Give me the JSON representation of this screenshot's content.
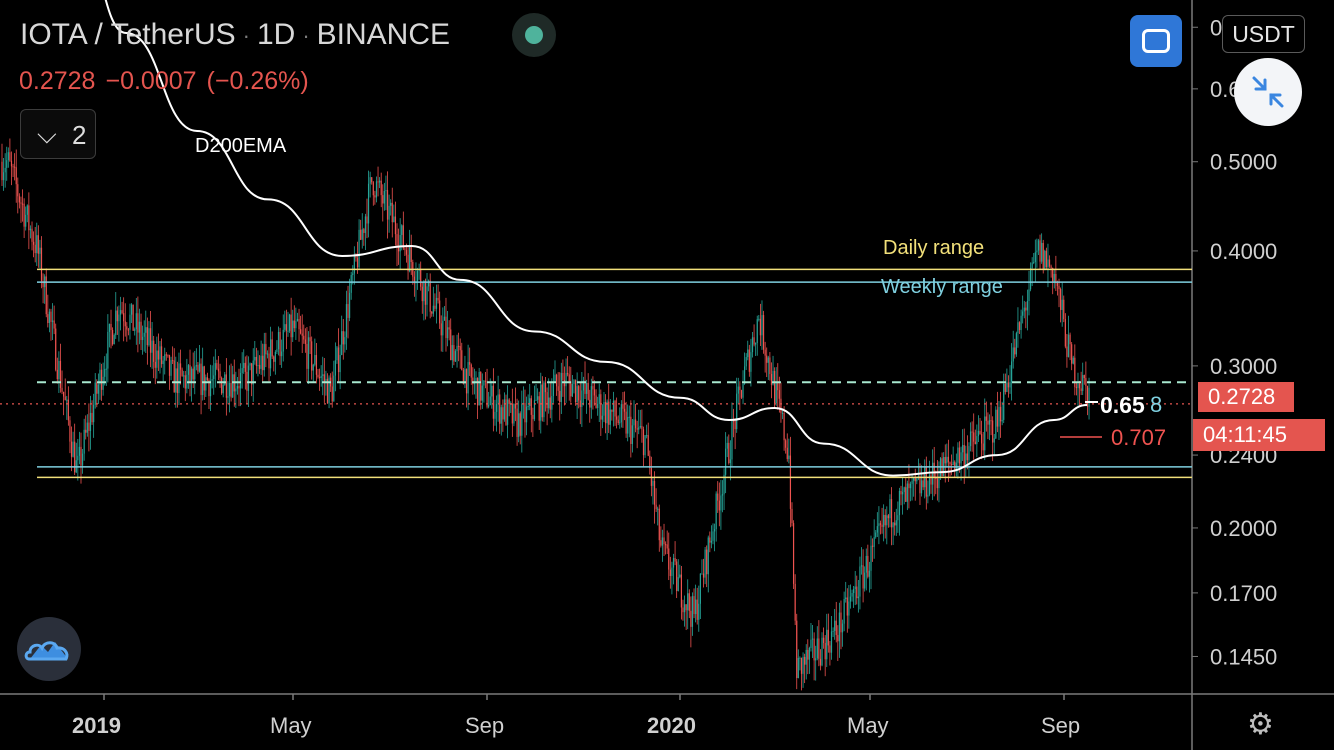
{
  "header": {
    "symbol": "IOTA / TetherUS",
    "interval": "1D",
    "exchange": "BINANCE",
    "last_price": "0.2728",
    "change": "−0.0007",
    "change_pct": "(−0.26%)"
  },
  "legend_toggle": {
    "icon": "chevron-down-icon",
    "count": "2"
  },
  "currency_button": "USDT",
  "fullscreen_icon": "fullscreen-icon",
  "shrink_icon": "collapse-arrows-icon",
  "logo_icon": "tradingview-cloud-icon",
  "settings_icon": "gear-icon",
  "colors": {
    "up": "#26a69a",
    "down": "#ef5350",
    "daily_range": "#f2e07a",
    "weekly_range": "#7fd0e0",
    "ema": "#ffffff",
    "price_tag": "#e4554f",
    "accent": "#2f77d7"
  },
  "annotations": {
    "ema_label": "D200EMA",
    "daily_range_label": "Daily range",
    "weekly_range_label": "Weekly range",
    "fib_label": "0.65",
    "fib_label_2": "8",
    "ratio_label": "0.707"
  },
  "price_tags": {
    "last_price": "0.2728",
    "countdown": "04:11:45"
  },
  "chart_data": {
    "type": "candlestick",
    "scale": "log",
    "ylim": [
      0.132,
      0.72
    ],
    "y_ticks": [
      "0.7000",
      "0.6000",
      "0.5000",
      "0.4000",
      "0.3000",
      "0.2400",
      "0.2000",
      "0.1700",
      "0.1450"
    ],
    "x_ticks": [
      "2019",
      "May",
      "Sep",
      "2020",
      "May",
      "Sep"
    ],
    "hlines": [
      {
        "name": "Daily range",
        "values": [
          0.382,
          0.227
        ]
      },
      {
        "name": "Weekly range",
        "values": [
          0.37,
          0.233
        ]
      },
      {
        "name": "dashed",
        "value": 0.288
      }
    ],
    "ema_path": [
      [
        "2018-12-15",
        0.88
      ],
      [
        "2019-01-15",
        0.69
      ],
      [
        "2019-03-01",
        0.54
      ],
      [
        "2019-04-15",
        0.455
      ],
      [
        "2019-06-01",
        0.395
      ],
      [
        "2019-07-15",
        0.405
      ],
      [
        "2019-08-15",
        0.372
      ],
      [
        "2019-10-01",
        0.327
      ],
      [
        "2019-11-15",
        0.303
      ],
      [
        "2020-01-01",
        0.277
      ],
      [
        "2020-02-01",
        0.262
      ],
      [
        "2020-03-01",
        0.27
      ],
      [
        "2020-04-01",
        0.247
      ],
      [
        "2020-05-15",
        0.228
      ],
      [
        "2020-06-15",
        0.23
      ],
      [
        "2020-07-20",
        0.24
      ],
      [
        "2020-08-25",
        0.262
      ],
      [
        "2020-09-15",
        0.272
      ]
    ],
    "price_path": [
      [
        "2018-11-01",
        0.5
      ],
      [
        "2018-11-20",
        0.4
      ],
      [
        "2018-12-15",
        0.23
      ],
      [
        "2019-01-10",
        0.35
      ],
      [
        "2019-02-15",
        0.29
      ],
      [
        "2019-04-01",
        0.29
      ],
      [
        "2019-05-01",
        0.33
      ],
      [
        "2019-05-25",
        0.28
      ],
      [
        "2019-06-20",
        0.48
      ],
      [
        "2019-07-15",
        0.39
      ],
      [
        "2019-08-20",
        0.29
      ],
      [
        "2019-09-20",
        0.26
      ],
      [
        "2019-10-20",
        0.29
      ],
      [
        "2019-12-10",
        0.25
      ],
      [
        "2019-12-20",
        0.19
      ],
      [
        "2020-01-10",
        0.16
      ],
      [
        "2020-02-10",
        0.29
      ],
      [
        "2020-02-20",
        0.34
      ],
      [
        "2020-03-10",
        0.24
      ],
      [
        "2020-03-15",
        0.14
      ],
      [
        "2020-04-10",
        0.155
      ],
      [
        "2020-05-15",
        0.21
      ],
      [
        "2020-06-20",
        0.235
      ],
      [
        "2020-07-20",
        0.26
      ],
      [
        "2020-08-15",
        0.4
      ],
      [
        "2020-08-25",
        0.38
      ],
      [
        "2020-09-05",
        0.3
      ],
      [
        "2020-09-20",
        0.2728
      ]
    ]
  }
}
